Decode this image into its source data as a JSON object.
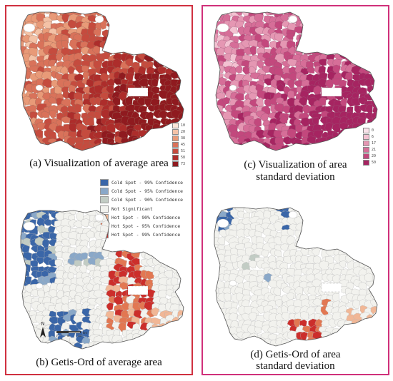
{
  "panels": {
    "a": {
      "caption": "(a) Visualization of average area",
      "legend": [
        {
          "label": "10",
          "color": "#fbe4d8"
        },
        {
          "label": "20",
          "color": "#f4c2a6"
        },
        {
          "label": "38",
          "color": "#e89a78"
        },
        {
          "label": "45",
          "color": "#d9725a"
        },
        {
          "label": "51",
          "color": "#c54b3e"
        },
        {
          "label": "58",
          "color": "#ad2d2b"
        },
        {
          "label": "73",
          "color": "#8f1a1f"
        }
      ]
    },
    "b": {
      "caption": "(b) Getis-Ord of average area",
      "legend": [
        {
          "label": "Cold Spot - 99% Confidence",
          "color": "#3a66a8"
        },
        {
          "label": "Cold Spot - 95% Confidence",
          "color": "#8aa8c8"
        },
        {
          "label": "Cold Spot - 90% Confidence",
          "color": "#c2ccc4"
        },
        {
          "label": "Not Significant",
          "color": "#f2f2ee"
        },
        {
          "label": "Hot Spot - 90% Confidence",
          "color": "#f1b796"
        },
        {
          "label": "Hot Spot - 95% Confidence",
          "color": "#e27752"
        },
        {
          "label": "Hot Spot - 99% Confidence",
          "color": "#cc2e2b"
        }
      ],
      "north_label": "N",
      "scale_labels": [
        "0",
        "5",
        "10"
      ],
      "scale_unit": "km"
    },
    "c": {
      "caption_line1": "(c) Visualization of area",
      "caption_line2": "standard deviation",
      "legend": [
        {
          "label": "0",
          "color": "#fbe3ea"
        },
        {
          "label": "6",
          "color": "#f3c1d1"
        },
        {
          "label": "17",
          "color": "#e597b3"
        },
        {
          "label": "21",
          "color": "#d66e98"
        },
        {
          "label": "29",
          "color": "#c3487d"
        },
        {
          "label": "50",
          "color": "#a62461"
        }
      ]
    },
    "d": {
      "caption_line1": "(d) Getis-Ord of area",
      "caption_line2": "standard deviation"
    }
  }
}
